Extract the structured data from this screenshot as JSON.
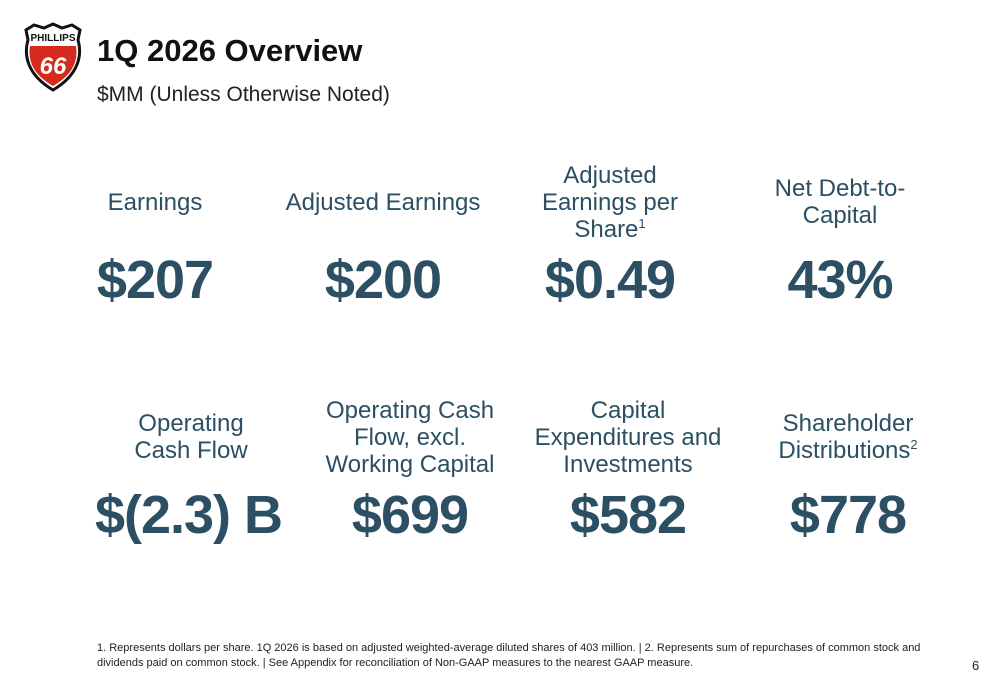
{
  "logo": {
    "text_top": "PHILLIPS",
    "text_num": "66",
    "colors": {
      "red": "#d52b1e",
      "black": "#111111"
    }
  },
  "header": {
    "title": "1Q 2026 Overview",
    "subtitle": "$MM (Unless Otherwise Noted)"
  },
  "accent_color": "#2c4f63",
  "metrics": [
    {
      "label": "Earnings",
      "sup": "",
      "value": "$207"
    },
    {
      "label": "Adjusted Earnings",
      "sup": "",
      "value": "$200"
    },
    {
      "label": "Adjusted Earnings per Share",
      "sup": "1",
      "value": "$0.49"
    },
    {
      "label": "Net Debt-to-Capital",
      "sup": "",
      "value": "43%"
    },
    {
      "label": "Operating Cash Flow",
      "sup": "",
      "value": "$(2.3) B"
    },
    {
      "label": "Operating Cash Flow, excl. Working Capital",
      "sup": "",
      "value": "$699"
    },
    {
      "label": "Capital Expenditures and Investments",
      "sup": "",
      "value": "$582"
    },
    {
      "label": "Shareholder Distributions",
      "sup": "2",
      "value": "$778"
    }
  ],
  "footnote": "1. Represents dollars per share. 1Q 2026 is based on adjusted weighted-average diluted shares of 403 million. | 2. Represents sum of repurchases of common stock and dividends paid on common stock. | See Appendix for reconciliation of Non-GAAP measures to the nearest GAAP measure.",
  "page_number": "6"
}
